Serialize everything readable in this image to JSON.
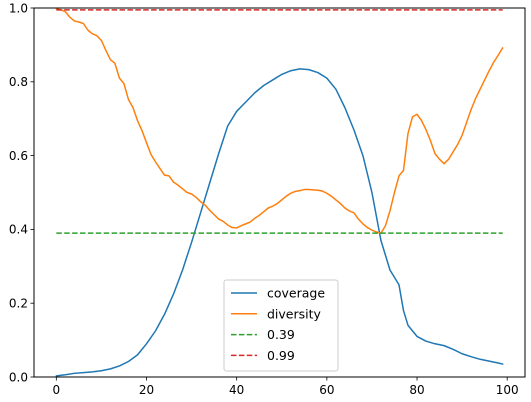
{
  "chart_data": {
    "type": "line",
    "xlim": [
      -4.95,
      103.95
    ],
    "ylim": [
      0.0,
      1.0
    ],
    "x_ticks": [
      0,
      20,
      40,
      60,
      80,
      100
    ],
    "y_ticks": [
      0.0,
      0.2,
      0.4,
      0.6,
      0.8,
      1.0
    ],
    "x_tick_labels": [
      "0",
      "20",
      "40",
      "60",
      "80",
      "100"
    ],
    "y_tick_labels": [
      "0.0",
      "0.2",
      "0.4",
      "0.6",
      "0.8",
      "1.0"
    ],
    "legend_position": "lower-center",
    "series": [
      {
        "name": "coverage",
        "color": "#1f77b4",
        "dashed": false,
        "x": [
          0,
          2,
          4,
          6,
          8,
          10,
          12,
          14,
          16,
          18,
          20,
          22,
          24,
          26,
          28,
          30,
          32,
          34,
          36,
          38,
          40,
          42,
          44,
          46,
          48,
          50,
          52,
          54,
          56,
          58,
          60,
          62,
          64,
          66,
          68,
          70,
          72,
          74,
          76,
          77,
          78,
          80,
          82,
          84,
          86,
          88,
          90,
          92,
          94,
          96,
          98,
          99
        ],
        "y": [
          0.003,
          0.006,
          0.01,
          0.012,
          0.014,
          0.017,
          0.022,
          0.03,
          0.042,
          0.06,
          0.09,
          0.125,
          0.17,
          0.225,
          0.29,
          0.365,
          0.445,
          0.525,
          0.605,
          0.68,
          0.72,
          0.745,
          0.77,
          0.79,
          0.805,
          0.82,
          0.83,
          0.835,
          0.833,
          0.825,
          0.81,
          0.78,
          0.73,
          0.67,
          0.6,
          0.5,
          0.37,
          0.29,
          0.25,
          0.18,
          0.14,
          0.11,
          0.097,
          0.09,
          0.085,
          0.075,
          0.063,
          0.055,
          0.048,
          0.043,
          0.038,
          0.035
        ]
      },
      {
        "name": "diversity",
        "color": "#ff7f0e",
        "dashed": false,
        "x": [
          0,
          1,
          2,
          3,
          4,
          5,
          6,
          7,
          8,
          9,
          10,
          11,
          12,
          13,
          14,
          15,
          16,
          17,
          18,
          19,
          20,
          21,
          22,
          23,
          24,
          25,
          26,
          27,
          28,
          29,
          30,
          31,
          32,
          33,
          34,
          35,
          36,
          37,
          38,
          39,
          40,
          41,
          42,
          43,
          44,
          45,
          46,
          47,
          48,
          49,
          50,
          51,
          52,
          53,
          54,
          55,
          56,
          57,
          58,
          59,
          60,
          61,
          62,
          63,
          64,
          65,
          66,
          67,
          68,
          69,
          70,
          71,
          72,
          73,
          74,
          75,
          76,
          77,
          78,
          79,
          80,
          81,
          82,
          83,
          84,
          85,
          86,
          87,
          88,
          89,
          90,
          91,
          92,
          93,
          94,
          95,
          96,
          97,
          98,
          99
        ],
        "y": [
          0.998,
          0.995,
          0.99,
          0.975,
          0.965,
          0.962,
          0.958,
          0.94,
          0.93,
          0.925,
          0.912,
          0.885,
          0.86,
          0.85,
          0.81,
          0.795,
          0.752,
          0.73,
          0.695,
          0.668,
          0.635,
          0.603,
          0.583,
          0.565,
          0.547,
          0.545,
          0.528,
          0.52,
          0.51,
          0.5,
          0.496,
          0.487,
          0.475,
          0.466,
          0.452,
          0.44,
          0.428,
          0.422,
          0.412,
          0.405,
          0.404,
          0.41,
          0.415,
          0.42,
          0.43,
          0.438,
          0.448,
          0.458,
          0.463,
          0.47,
          0.48,
          0.49,
          0.498,
          0.503,
          0.505,
          0.508,
          0.508,
          0.507,
          0.506,
          0.504,
          0.498,
          0.49,
          0.48,
          0.47,
          0.458,
          0.45,
          0.445,
          0.428,
          0.415,
          0.405,
          0.398,
          0.393,
          0.39,
          0.41,
          0.45,
          0.5,
          0.545,
          0.56,
          0.66,
          0.705,
          0.712,
          0.695,
          0.67,
          0.64,
          0.605,
          0.59,
          0.578,
          0.59,
          0.61,
          0.63,
          0.655,
          0.69,
          0.725,
          0.755,
          0.78,
          0.805,
          0.83,
          0.853,
          0.872,
          0.892
        ]
      },
      {
        "name": "0.39",
        "color": "#2ca02c",
        "dashed": true,
        "x": [
          0,
          99
        ],
        "y": [
          0.39,
          0.39
        ]
      },
      {
        "name": "0.99",
        "color": "#d62728",
        "dashed": true,
        "x": [
          0,
          99
        ],
        "y": [
          0.995,
          0.995
        ]
      }
    ]
  }
}
